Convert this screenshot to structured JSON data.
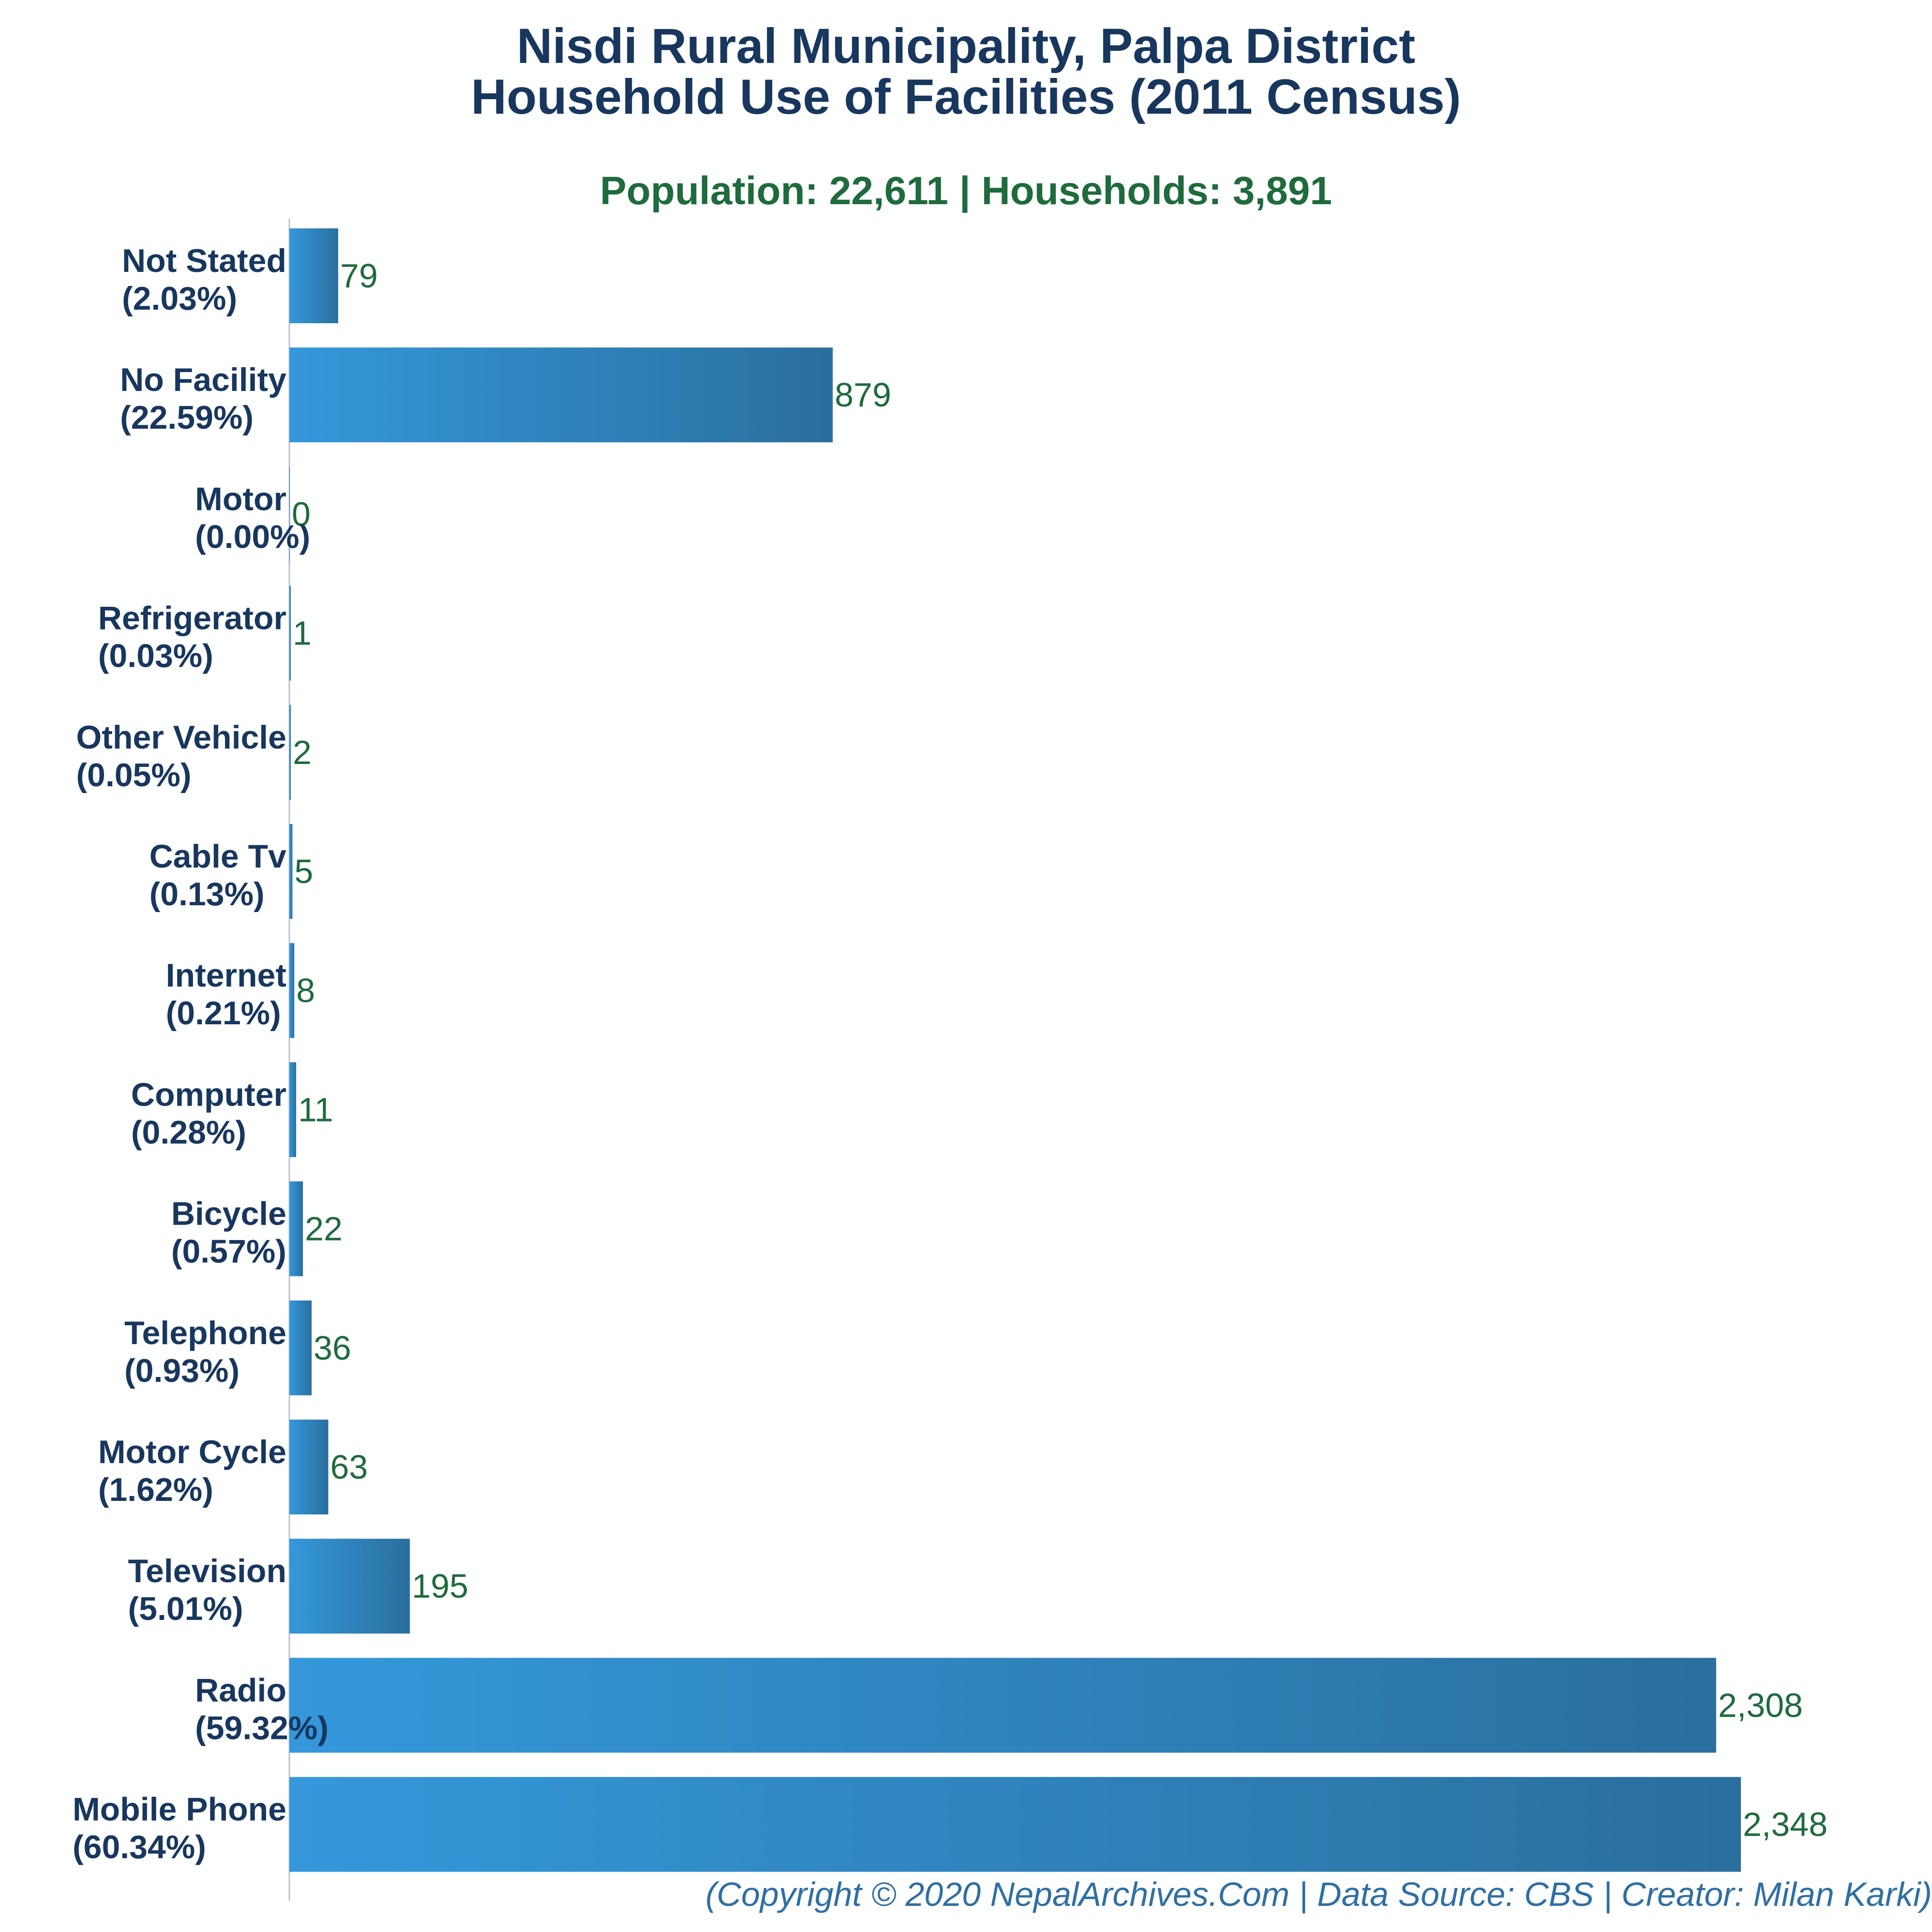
{
  "title_line1": "Nisdi Rural Municipality, Palpa District",
  "title_line2": "Household Use of Facilities (2011 Census)",
  "subtitle": "Population: 22,611 | Households: 3,891",
  "footer": "(Copyright © 2020 NepalArchives.Com | Data Source: CBS | Creator: Milan Karki)",
  "colors": {
    "title": "#17375e",
    "value_label": "#1e6b3c",
    "footer": "#2e6fa4",
    "bar_gradient_start": "#3498db",
    "bar_gradient_end": "#2a6f9e"
  },
  "chart_data": {
    "type": "bar",
    "orientation": "horizontal",
    "categories": [
      "Not Stated",
      "No Facility",
      "Motor",
      "Refrigerator",
      "Other Vehicle",
      "Cable Tv",
      "Internet",
      "Computer",
      "Bicycle",
      "Telephone",
      "Motor Cycle",
      "Television",
      "Radio",
      "Mobile Phone"
    ],
    "percent_labels": [
      "(2.03%)",
      "(22.59%)",
      "(0.00%)",
      "(0.03%)",
      "(0.05%)",
      "(0.13%)",
      "(0.21%)",
      "(0.28%)",
      "(0.57%)",
      "(0.93%)",
      "(1.62%)",
      "(5.01%)",
      "(59.32%)",
      "(60.34%)"
    ],
    "values": [
      79,
      879,
      0,
      1,
      2,
      5,
      8,
      11,
      22,
      36,
      63,
      195,
      2308,
      2348
    ],
    "value_labels": [
      "79",
      "879",
      "0",
      "1",
      "2",
      "5",
      "8",
      "11",
      "22",
      "36",
      "63",
      "195",
      "2,308",
      "2,348"
    ],
    "xlim": [
      0,
      2348
    ],
    "grid": false,
    "legend": "none"
  }
}
